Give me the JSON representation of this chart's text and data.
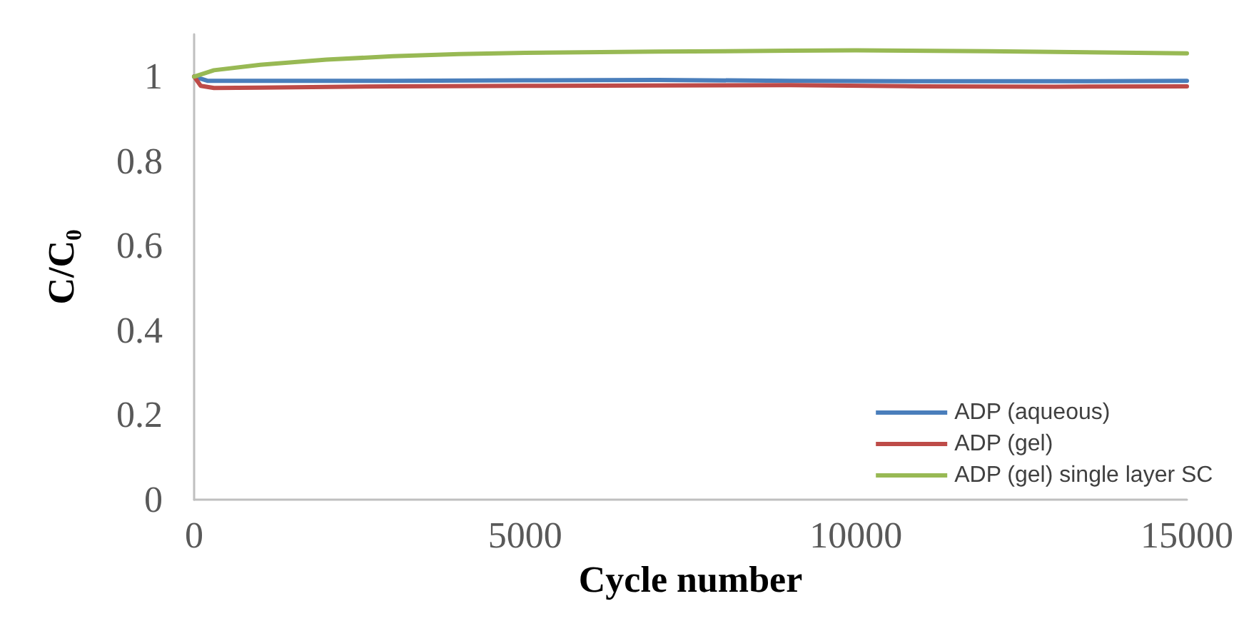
{
  "chart_data": {
    "type": "line",
    "xlabel": "Cycle number",
    "ylabel": "C/C₀",
    "xlim": [
      0,
      15000
    ],
    "xticks": [
      0,
      5000,
      10000,
      15000
    ],
    "ylim": [
      0,
      1.1
    ],
    "yticks": [
      0,
      0.2,
      0.4,
      0.6,
      0.8,
      1
    ],
    "grid": false,
    "legend": "bottom right",
    "marker": "none",
    "line_style": "solid",
    "series": [
      {
        "name": "ADP (aqueous)",
        "color": "#4a7ebb",
        "x": [
          0,
          200,
          1000,
          3000,
          5000,
          7000,
          9000,
          11000,
          13000,
          15000
        ],
        "values": [
          1,
          0.99,
          0.99,
          0.99,
          0.991,
          0.992,
          0.99,
          0.989,
          0.989,
          0.99
        ]
      },
      {
        "name": "ADP (gel)",
        "color": "#be4b48",
        "x": [
          0,
          100,
          300,
          1000,
          3000,
          5000,
          7000,
          9000,
          11000,
          13000,
          15000
        ],
        "values": [
          1,
          0.978,
          0.973,
          0.974,
          0.977,
          0.978,
          0.979,
          0.98,
          0.977,
          0.976,
          0.977
        ]
      },
      {
        "name": "ADP (gel) single layer SC",
        "color": "#98b954",
        "x": [
          0,
          300,
          1000,
          2000,
          3000,
          4000,
          5000,
          7000,
          9000,
          10000,
          12000,
          15000
        ],
        "values": [
          1,
          1.015,
          1.028,
          1.04,
          1.048,
          1.053,
          1.056,
          1.059,
          1.061,
          1.062,
          1.06,
          1.055
        ]
      }
    ]
  }
}
